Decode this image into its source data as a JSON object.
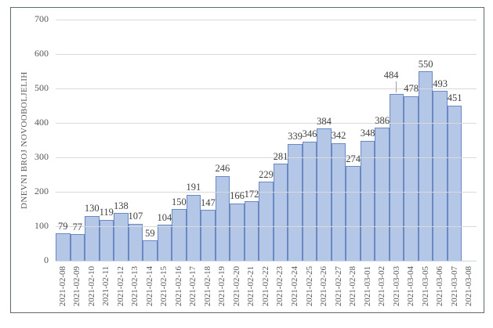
{
  "chart_data": {
    "type": "bar",
    "title": "",
    "xlabel": "",
    "ylabel": "DNEVNI BROJ NOVOOBOLJELIH",
    "categories": [
      "2021-02-08",
      "2021-02-09",
      "2021-02-10",
      "2021-02-11",
      "2021-02-12",
      "2021-02-13",
      "2021-02-14",
      "2021-02-15",
      "2021-02-16",
      "2021-02-17",
      "2021-02-18",
      "2021-02-19",
      "2021-02-20",
      "2021-02-21",
      "2021-02-22",
      "2021-02-23",
      "2021-02-24",
      "2021-02-25",
      "2021-02-26",
      "2021-02-27",
      "2021-02-28",
      "2021-03-01",
      "2021-03-02",
      "2021-03-03",
      "2021-03-04",
      "2021-03-05",
      "2021-03-06",
      "2021-03-07",
      "2021-03-08"
    ],
    "values": [
      79,
      77,
      130,
      119,
      138,
      107,
      59,
      104,
      150,
      191,
      147,
      246,
      166,
      172,
      229,
      281,
      339,
      346,
      384,
      342,
      274,
      348,
      386,
      484,
      478,
      550,
      493,
      451,
      null
    ],
    "data_labels": true,
    "label_leader_line_category": "2021-03-03",
    "ylim": [
      0,
      700
    ],
    "ytick_step": 100,
    "grid": true,
    "legend_position": "none",
    "colors": {
      "bar_fill": "#b4c7e7",
      "bar_border": "#6a89c4",
      "gridline": "#d9d9d9",
      "axis_text": "#595959",
      "data_label": "#3f3f3f",
      "frame_border": "#5f6a70",
      "axis_line": "#c9d4e4"
    }
  }
}
